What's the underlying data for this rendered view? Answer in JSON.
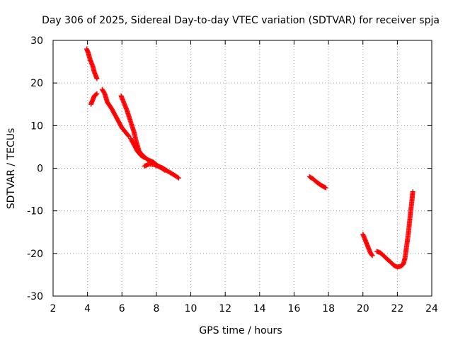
{
  "chart_data": {
    "type": "scatter",
    "title": "Day 306 of 2025, Sidereal Day-to-day VTEC variation (SDTVAR) for receiver spja",
    "xlabel": "GPS time / hours",
    "ylabel": "SDTVAR / TECUs",
    "xlim": [
      2,
      24
    ],
    "ylim": [
      -30,
      30
    ],
    "xticks": [
      2,
      4,
      6,
      8,
      10,
      12,
      14,
      16,
      18,
      20,
      22,
      24
    ],
    "yticks": [
      -30,
      -20,
      -10,
      0,
      10,
      20,
      30
    ],
    "grid": true,
    "marker": "+",
    "color": "#ff0000",
    "segments": [
      [
        [
          3.95,
          28.0
        ],
        [
          4.05,
          27.0
        ],
        [
          4.15,
          25.5
        ],
        [
          4.3,
          24.0
        ],
        [
          4.4,
          22.5
        ],
        [
          4.55,
          21.0
        ]
      ],
      [
        [
          4.2,
          15.0
        ],
        [
          4.3,
          16.0
        ],
        [
          4.4,
          17.0
        ],
        [
          4.55,
          17.5
        ]
      ],
      [
        [
          4.85,
          18.5
        ],
        [
          5.0,
          17.5
        ],
        [
          5.15,
          15.5
        ],
        [
          5.4,
          14.0
        ],
        [
          5.6,
          12.5
        ],
        [
          5.8,
          11.0
        ],
        [
          6.0,
          9.5
        ],
        [
          6.2,
          8.5
        ],
        [
          6.4,
          7.5
        ]
      ],
      [
        [
          5.95,
          17.0
        ],
        [
          6.1,
          15.5
        ],
        [
          6.3,
          13.5
        ],
        [
          6.5,
          11.0
        ],
        [
          6.7,
          8.5
        ],
        [
          6.85,
          6.0
        ],
        [
          7.0,
          4.0
        ],
        [
          7.2,
          3.0
        ],
        [
          7.5,
          2.0
        ],
        [
          7.8,
          1.5
        ],
        [
          8.1,
          0.5
        ],
        [
          8.4,
          0.0
        ],
        [
          8.7,
          -0.8
        ],
        [
          9.0,
          -1.5
        ],
        [
          9.3,
          -2.3
        ]
      ],
      [
        [
          6.5,
          7.0
        ],
        [
          6.7,
          5.5
        ],
        [
          6.9,
          4.0
        ],
        [
          7.1,
          3.0
        ],
        [
          7.3,
          2.5
        ]
      ],
      [
        [
          7.3,
          0.5
        ],
        [
          7.6,
          1.0
        ],
        [
          7.9,
          0.8
        ],
        [
          8.2,
          0.3
        ],
        [
          8.5,
          -0.5
        ]
      ],
      [
        [
          16.9,
          -2.0
        ],
        [
          17.1,
          -2.5
        ],
        [
          17.3,
          -3.2
        ],
        [
          17.5,
          -3.8
        ],
        [
          17.7,
          -4.3
        ],
        [
          17.85,
          -4.6
        ]
      ],
      [
        [
          20.0,
          -15.5
        ],
        [
          20.15,
          -17.0
        ],
        [
          20.3,
          -18.5
        ],
        [
          20.45,
          -20.0
        ],
        [
          20.55,
          -20.5
        ]
      ],
      [
        [
          20.8,
          -19.5
        ],
        [
          21.0,
          -19.8
        ],
        [
          21.2,
          -20.5
        ],
        [
          21.4,
          -21.3
        ],
        [
          21.6,
          -22.0
        ],
        [
          21.8,
          -22.8
        ],
        [
          22.0,
          -23.2
        ],
        [
          22.2,
          -23.0
        ],
        [
          22.35,
          -22.5
        ],
        [
          22.45,
          -21.0
        ],
        [
          22.55,
          -18.0
        ],
        [
          22.65,
          -15.0
        ],
        [
          22.75,
          -11.0
        ],
        [
          22.85,
          -7.5
        ],
        [
          22.9,
          -5.5
        ]
      ]
    ]
  }
}
